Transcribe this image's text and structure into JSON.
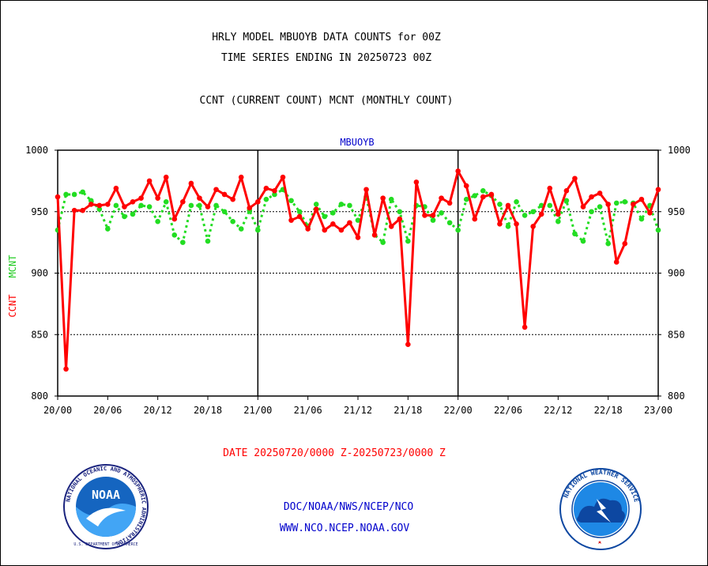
{
  "header": {
    "title_line1": "HRLY MODEL MBUOYB DATA COUNTS for 00Z",
    "title_line2": "TIME SERIES ENDING IN 20250723 00Z",
    "subtitle": "CCNT (CURRENT COUNT) MCNT (MONTHLY COUNT)"
  },
  "footer": {
    "date_range": "DATE 20250720/0000 Z-20250723/0000 Z",
    "org_line": "DOC/NOAA/NWS/NCEP/NCO",
    "website": "WWW.NCO.NCEP.NOAA.GOV"
  },
  "logos": {
    "noaa_text": "NOAA",
    "noaa_ring_text": "NATIONAL OCEANIC AND ATMOSPHERIC ADMINISTRATION",
    "noaa_bottom_text": "U.S. DEPARTMENT OF COMMERCE",
    "nws_ring_text": "NATIONAL WEATHER SERVICE"
  },
  "colors": {
    "ccnt": "#ff0000",
    "mcnt": "#22dd22",
    "panel_label": "#0000cc",
    "date_label": "#ff0000",
    "footer_text": "#0000cc"
  },
  "chart_data": {
    "type": "line",
    "panel_label": "MBUOYB",
    "ylabel_ccnt": "CCNT",
    "ylabel_mcnt": "MCNT",
    "ylim": [
      800,
      1000
    ],
    "yticks": [
      800,
      850,
      900,
      950,
      1000
    ],
    "y_gridlines": [
      850,
      900,
      950,
      1000
    ],
    "xlim_hours": [
      0,
      72
    ],
    "xticks": [
      {
        "hour": 0,
        "label": "20/00"
      },
      {
        "hour": 6,
        "label": "20/06"
      },
      {
        "hour": 12,
        "label": "20/12"
      },
      {
        "hour": 18,
        "label": "20/18"
      },
      {
        "hour": 24,
        "label": "21/00"
      },
      {
        "hour": 30,
        "label": "21/06"
      },
      {
        "hour": 36,
        "label": "21/12"
      },
      {
        "hour": 42,
        "label": "21/18"
      },
      {
        "hour": 48,
        "label": "22/00"
      },
      {
        "hour": 54,
        "label": "22/06"
      },
      {
        "hour": 60,
        "label": "22/12"
      },
      {
        "hour": 66,
        "label": "22/18"
      },
      {
        "hour": 72,
        "label": "23/00"
      }
    ],
    "day_dividers_hours": [
      24,
      48
    ],
    "series": [
      {
        "name": "CCNT",
        "style": "solid",
        "values": [
          962,
          822,
          951,
          951,
          956,
          955,
          956,
          969,
          954,
          958,
          961,
          975,
          961,
          978,
          944,
          958,
          973,
          961,
          954,
          968,
          964,
          960,
          978,
          953,
          958,
          969,
          967,
          978,
          943,
          946,
          936,
          952,
          935,
          940,
          935,
          941,
          929,
          968,
          931,
          961,
          938,
          944,
          842,
          974,
          947,
          947,
          961,
          957,
          983,
          971,
          944,
          962,
          964,
          940,
          955,
          940,
          856,
          938,
          948,
          969,
          948,
          967,
          977,
          954,
          962,
          965,
          956,
          909,
          924,
          956,
          960,
          949,
          968
        ]
      },
      {
        "name": "MCNT",
        "style": "dotted",
        "values": [
          935,
          964,
          964,
          966,
          959,
          952,
          936,
          955,
          946,
          948,
          955,
          954,
          942,
          958,
          931,
          925,
          955,
          955,
          926,
          955,
          950,
          942,
          936,
          951,
          935,
          960,
          964,
          968,
          959,
          950,
          938,
          956,
          946,
          949,
          956,
          955,
          943,
          962,
          931,
          925,
          960,
          950,
          926,
          955,
          954,
          943,
          949,
          941,
          935,
          960,
          963,
          967,
          963,
          956,
          938,
          958,
          947,
          950,
          955,
          955,
          942,
          959,
          932,
          926,
          950,
          954,
          924,
          957,
          958,
          957,
          944,
          955,
          935
        ]
      }
    ]
  }
}
